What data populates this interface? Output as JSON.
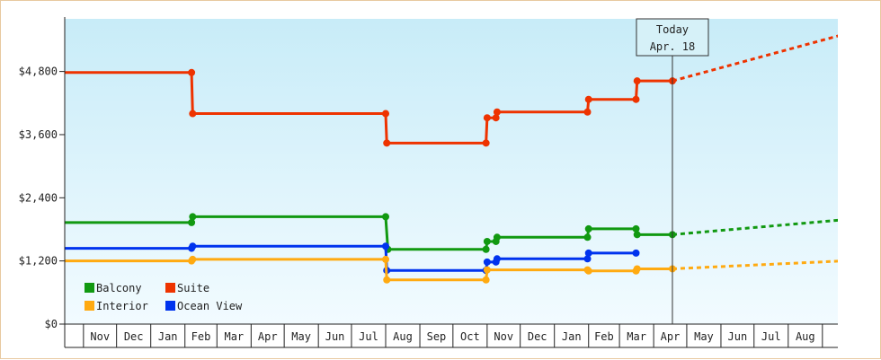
{
  "chart_data": {
    "type": "line",
    "title": "",
    "xlabel": "",
    "ylabel": "",
    "ylim": [
      0,
      5800
    ],
    "y_ticks": [
      0,
      1200,
      2400,
      3600,
      4800
    ],
    "y_tick_labels": [
      "$0",
      "$1,200",
      "$2,400",
      "$3,600",
      "$4,800"
    ],
    "categories": [
      "Nov",
      "Dec",
      "Jan",
      "Feb",
      "Mar",
      "Apr",
      "May",
      "Jun",
      "Jul",
      "Aug",
      "Sep",
      "Oct",
      "Nov",
      "Dec",
      "Jan",
      "Feb",
      "Mar",
      "Apr",
      "May",
      "Jun",
      "Jul",
      "Aug"
    ],
    "x_start": "2023-10-15",
    "x_end": "2025-09-15",
    "today": {
      "date": "2025-04-18",
      "title": "Today",
      "label": "Apr. 18"
    },
    "legend_position": "bottom-left",
    "grid": false,
    "background": {
      "top": "#c8ecf8",
      "bottom": "#f2fbff"
    },
    "series": [
      {
        "name": "Suite",
        "color": "#ee3300",
        "points": [
          [
            "2023-10-15",
            4780
          ],
          [
            "2024-02-07",
            4780
          ],
          [
            "2024-02-08",
            4000
          ],
          [
            "2024-08-01",
            4000
          ],
          [
            "2024-08-02",
            3440
          ],
          [
            "2024-10-31",
            3440
          ],
          [
            "2024-11-01",
            3920
          ],
          [
            "2024-11-09",
            3920
          ],
          [
            "2024-11-10",
            4030
          ],
          [
            "2025-01-31",
            4030
          ],
          [
            "2025-02-01",
            4270
          ],
          [
            "2025-03-16",
            4270
          ],
          [
            "2025-03-17",
            4620
          ],
          [
            "2025-04-18",
            4620
          ]
        ],
        "projection": [
          [
            "2025-04-18",
            4620
          ],
          [
            "2025-09-30",
            5560
          ]
        ]
      },
      {
        "name": "Balcony",
        "color": "#119911",
        "points": [
          [
            "2023-10-15",
            1930
          ],
          [
            "2024-02-07",
            1930
          ],
          [
            "2024-02-08",
            2040
          ],
          [
            "2024-08-01",
            2040
          ],
          [
            "2024-08-03",
            1420
          ],
          [
            "2024-10-31",
            1420
          ],
          [
            "2024-11-01",
            1570
          ],
          [
            "2024-11-09",
            1570
          ],
          [
            "2024-11-10",
            1650
          ],
          [
            "2025-01-31",
            1650
          ],
          [
            "2025-02-01",
            1810
          ],
          [
            "2025-03-16",
            1810
          ],
          [
            "2025-03-17",
            1700
          ],
          [
            "2025-04-18",
            1700
          ]
        ],
        "projection": [
          [
            "2025-04-18",
            1700
          ],
          [
            "2025-09-30",
            2000
          ]
        ]
      },
      {
        "name": "Ocean View",
        "color": "#0033ee",
        "points": [
          [
            "2023-10-15",
            1440
          ],
          [
            "2024-02-07",
            1440
          ],
          [
            "2024-02-08",
            1480
          ],
          [
            "2024-08-01",
            1480
          ],
          [
            "2024-08-02",
            1020
          ],
          [
            "2024-10-31",
            1020
          ],
          [
            "2024-11-01",
            1180
          ],
          [
            "2024-11-09",
            1180
          ],
          [
            "2024-11-10",
            1240
          ],
          [
            "2025-01-31",
            1240
          ],
          [
            "2025-02-01",
            1350
          ],
          [
            "2025-03-16",
            1350
          ]
        ],
        "projection": []
      },
      {
        "name": "Interior",
        "color": "#ffaa11",
        "points": [
          [
            "2023-10-15",
            1200
          ],
          [
            "2024-02-07",
            1200
          ],
          [
            "2024-02-08",
            1230
          ],
          [
            "2024-08-01",
            1230
          ],
          [
            "2024-08-02",
            840
          ],
          [
            "2024-10-31",
            840
          ],
          [
            "2024-11-01",
            1030
          ],
          [
            "2025-01-31",
            1030
          ],
          [
            "2025-02-01",
            1010
          ],
          [
            "2025-03-16",
            1010
          ],
          [
            "2025-03-17",
            1050
          ],
          [
            "2025-04-18",
            1050
          ]
        ],
        "projection": [
          [
            "2025-04-18",
            1050
          ],
          [
            "2025-09-30",
            1210
          ]
        ]
      }
    ],
    "legend": [
      {
        "name": "Balcony",
        "color": "#119911"
      },
      {
        "name": "Suite",
        "color": "#ee3300"
      },
      {
        "name": "Interior",
        "color": "#ffaa11"
      },
      {
        "name": "Ocean View",
        "color": "#0033ee"
      }
    ]
  }
}
